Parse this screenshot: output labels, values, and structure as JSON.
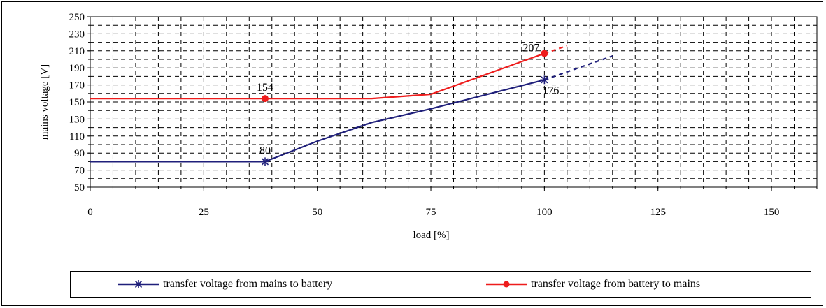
{
  "chart_data": {
    "type": "line",
    "xlabel": "load [%]",
    "ylabel": "mains voltage [V]",
    "xlim": [
      0,
      160
    ],
    "ylim": [
      50,
      250
    ],
    "xticks": [
      0,
      25,
      50,
      75,
      100,
      125,
      150
    ],
    "yticks": [
      50,
      70,
      90,
      110,
      130,
      150,
      170,
      190,
      210,
      230,
      250
    ],
    "x_minor_step": 5,
    "y_minor_step": 10,
    "grid": true,
    "legend_position": "bottom",
    "series": [
      {
        "name": "transfer voltage from mains to battery",
        "color": "#1f1f7a",
        "marker": "asterisk",
        "points": [
          [
            0,
            80
          ],
          [
            38.5,
            80
          ],
          [
            50,
            104
          ],
          [
            62,
            126
          ],
          [
            75,
            142
          ],
          [
            100,
            176
          ]
        ],
        "marker_points": [
          [
            38.5,
            80
          ],
          [
            100,
            176
          ]
        ],
        "dashed_extension": [
          [
            100,
            176
          ],
          [
            115,
            204
          ]
        ]
      },
      {
        "name": "transfer voltage from battery to mains",
        "color": "#ee1c1c",
        "marker": "circle",
        "points": [
          [
            0,
            154
          ],
          [
            38.5,
            154
          ],
          [
            62,
            154
          ],
          [
            75,
            159
          ],
          [
            100,
            207
          ]
        ],
        "marker_points": [
          [
            38.5,
            154
          ],
          [
            100,
            207
          ]
        ],
        "dashed_extension": [
          [
            100,
            207
          ],
          [
            105,
            216
          ]
        ]
      }
    ],
    "annotations": [
      {
        "text": "80",
        "x": 38.5,
        "y": 80,
        "position": "above"
      },
      {
        "text": "154",
        "x": 38.5,
        "y": 154,
        "position": "above"
      },
      {
        "text": "207",
        "x": 100,
        "y": 207,
        "position": "left"
      },
      {
        "text": "176",
        "x": 100,
        "y": 176,
        "position": "below-right"
      }
    ]
  }
}
